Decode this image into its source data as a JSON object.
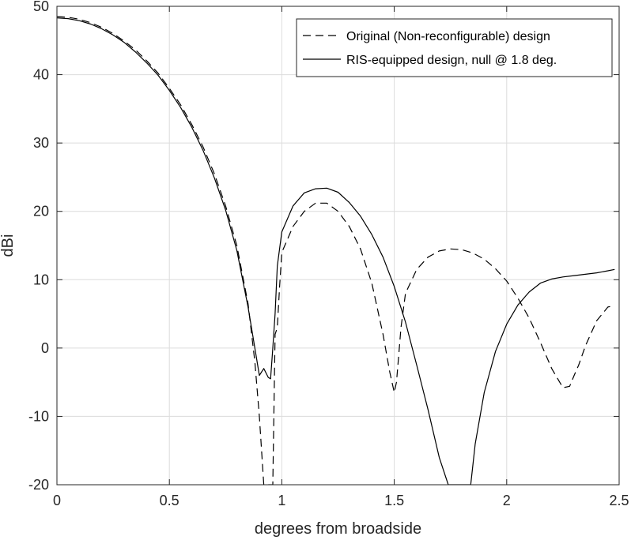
{
  "chart_data": {
    "type": "line",
    "title": "",
    "xlabel": "degrees from broadside",
    "ylabel": "dBi",
    "xlim": [
      0,
      2.5
    ],
    "ylim": [
      -20,
      50
    ],
    "grid": true,
    "legend_position": "top-right",
    "xticks": [
      0,
      0.5,
      1,
      1.5,
      2,
      2.5
    ],
    "xtick_labels": [
      "0",
      "0.5",
      "1",
      "1.5",
      "2",
      "2.5"
    ],
    "yticks": [
      -20,
      -10,
      0,
      10,
      20,
      30,
      40,
      50
    ],
    "ytick_labels": [
      "-20",
      "-10",
      "0",
      "10",
      "20",
      "30",
      "40",
      "50"
    ],
    "series": [
      {
        "name": "Original (Non-reconfigurable) design",
        "style": "dashed",
        "color": "#000000",
        "x": [
          0,
          0.05,
          0.1,
          0.15,
          0.2,
          0.25,
          0.3,
          0.35,
          0.4,
          0.45,
          0.5,
          0.55,
          0.6,
          0.65,
          0.7,
          0.75,
          0.8,
          0.85,
          0.88,
          0.9,
          0.92,
          0.94,
          0.95,
          0.96,
          0.97,
          0.98,
          0.99,
          1.0,
          1.05,
          1.1,
          1.15,
          1.2,
          1.25,
          1.3,
          1.35,
          1.4,
          1.45,
          1.48,
          1.5,
          1.51,
          1.52,
          1.53,
          1.55,
          1.6,
          1.65,
          1.7,
          1.75,
          1.8,
          1.85,
          1.9,
          1.95,
          2.0,
          2.05,
          2.1,
          2.15,
          2.2,
          2.25,
          2.28,
          2.3,
          2.32,
          2.35,
          2.4,
          2.45,
          2.48
        ],
        "y": [
          48.5,
          48.4,
          48.1,
          47.6,
          46.9,
          46.0,
          44.9,
          43.6,
          42.0,
          40.2,
          38.0,
          35.6,
          32.7,
          29.4,
          25.5,
          20.8,
          15.0,
          6.5,
          -2.0,
          -10,
          -20,
          -20,
          -20,
          -20,
          2.0,
          3.0,
          9.0,
          14.0,
          17.8,
          20.0,
          21.2,
          21.2,
          20.0,
          17.8,
          14.5,
          9.5,
          2.0,
          -3.5,
          -6.5,
          -5.0,
          -1.0,
          3.0,
          8.0,
          11.5,
          13.3,
          14.2,
          14.5,
          14.4,
          13.9,
          13.0,
          11.6,
          9.8,
          7.3,
          4.4,
          0.8,
          -3.0,
          -5.8,
          -5.6,
          -4.0,
          -2.5,
          0.3,
          4.0,
          6.0,
          6.2
        ]
      },
      {
        "name": "RIS-equipped design, null @ 1.8 deg.",
        "style": "solid",
        "color": "#000000",
        "x": [
          0,
          0.05,
          0.1,
          0.15,
          0.2,
          0.25,
          0.3,
          0.35,
          0.4,
          0.45,
          0.5,
          0.55,
          0.6,
          0.65,
          0.7,
          0.75,
          0.8,
          0.85,
          0.88,
          0.9,
          0.92,
          0.94,
          0.95,
          0.96,
          0.97,
          0.98,
          1.0,
          1.05,
          1.1,
          1.15,
          1.2,
          1.25,
          1.3,
          1.35,
          1.4,
          1.45,
          1.5,
          1.55,
          1.6,
          1.65,
          1.7,
          1.74,
          1.76,
          1.77,
          1.78,
          1.82,
          1.83,
          1.84,
          1.86,
          1.9,
          1.95,
          2.0,
          2.05,
          2.1,
          2.15,
          2.2,
          2.25,
          2.3,
          2.35,
          2.4,
          2.45,
          2.48
        ],
        "y": [
          48.3,
          48.2,
          47.9,
          47.4,
          46.7,
          45.8,
          44.7,
          43.3,
          41.7,
          39.9,
          37.7,
          35.2,
          32.3,
          28.9,
          24.9,
          20.2,
          14.3,
          6.0,
          0.0,
          -4.0,
          -3.0,
          -4.3,
          -4.5,
          0.0,
          5.0,
          12.0,
          17.0,
          20.8,
          22.7,
          23.3,
          23.4,
          22.8,
          21.3,
          19.3,
          16.6,
          13.3,
          9.0,
          3.8,
          -2.5,
          -9.0,
          -16.0,
          -20,
          -20,
          -20,
          -20,
          -20,
          -20,
          -20,
          -14.0,
          -6.5,
          -0.5,
          3.5,
          6.3,
          8.2,
          9.5,
          10.1,
          10.4,
          10.6,
          10.8,
          11.0,
          11.3,
          11.5
        ]
      }
    ]
  }
}
